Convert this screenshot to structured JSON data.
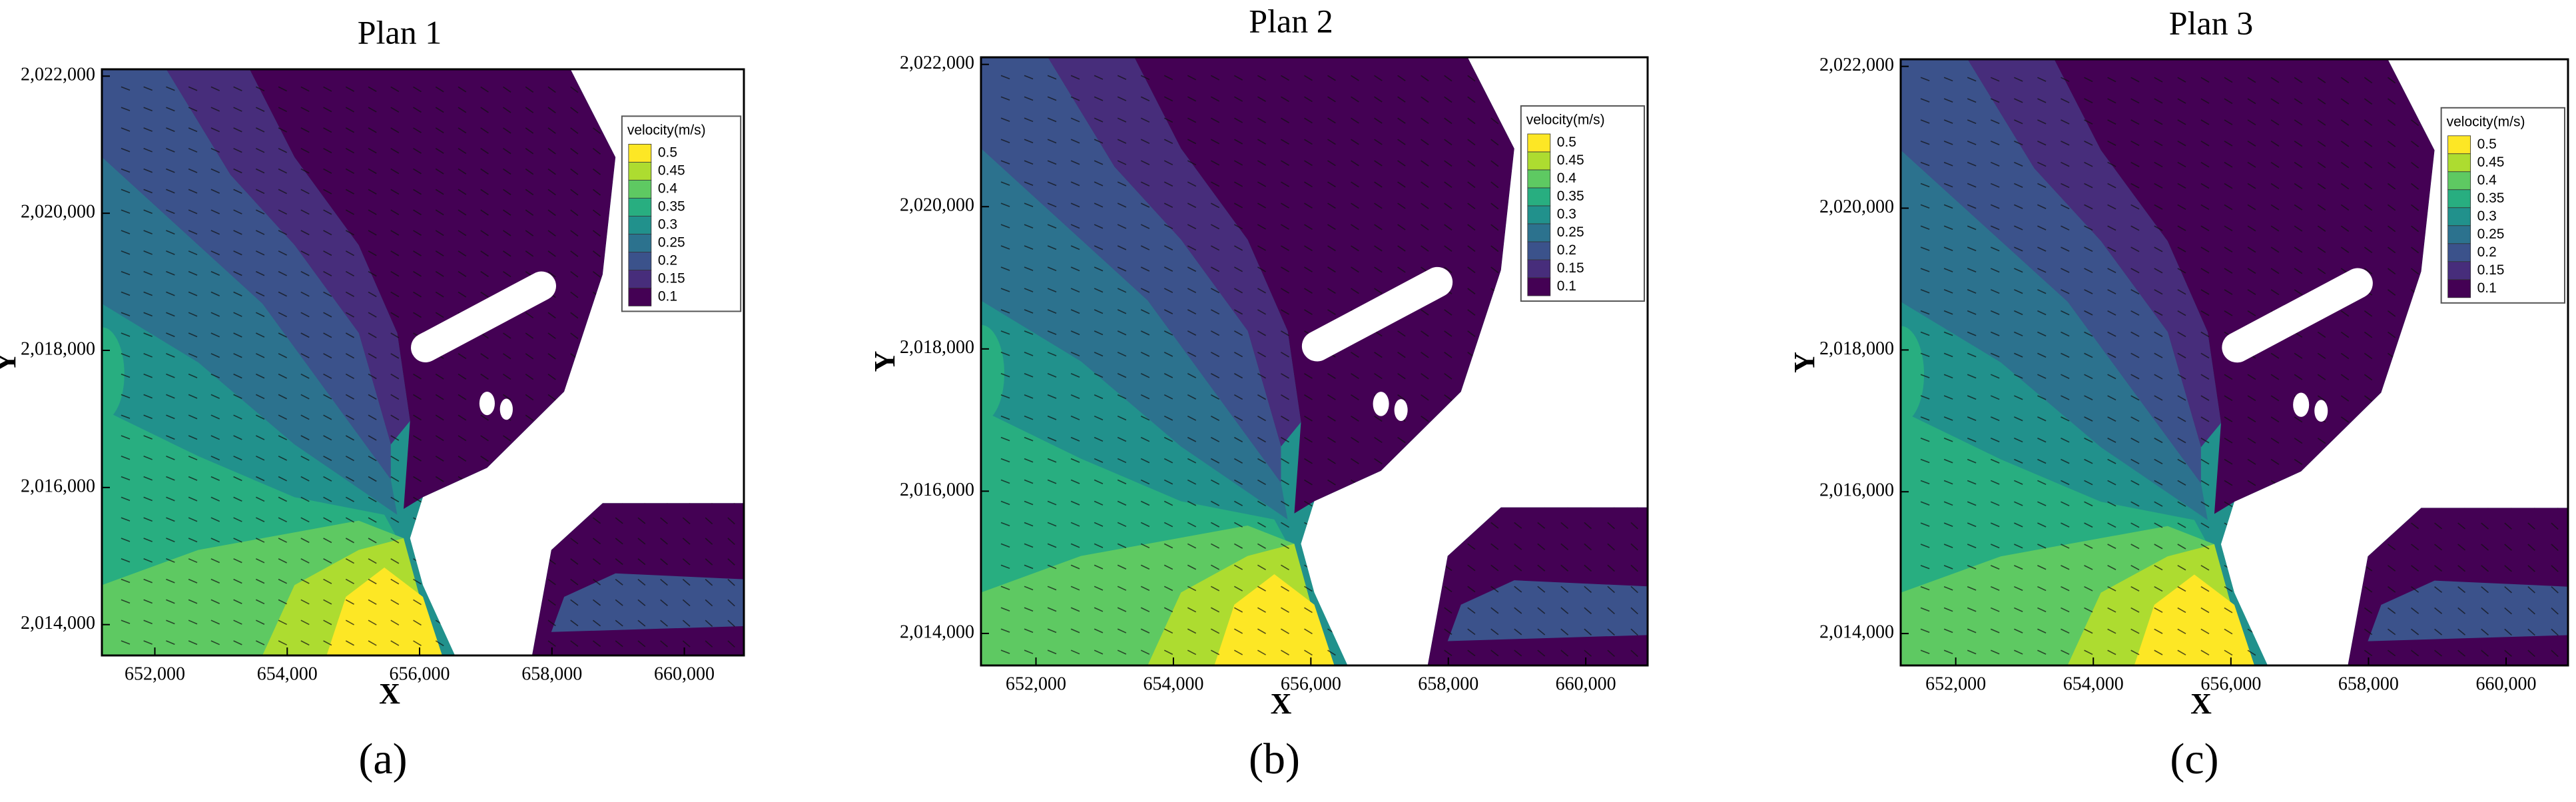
{
  "chart_data": [
    {
      "type": "contour",
      "title": "Plan 1",
      "x_label": "X",
      "y_label": "Y",
      "panel_label": "(a)",
      "xlim": [
        651200,
        660900
      ],
      "ylim": [
        2013550,
        2022100
      ],
      "xticks": [
        {
          "value": 652000,
          "label": "652,000"
        },
        {
          "value": 654000,
          "label": "654,000"
        },
        {
          "value": 656000,
          "label": "656,000"
        },
        {
          "value": 658000,
          "label": "658,000"
        },
        {
          "value": 660000,
          "label": "660,000"
        }
      ],
      "yticks": [
        {
          "value": 2014000,
          "label": "2,014,000"
        },
        {
          "value": 2016000,
          "label": "2,016,000"
        },
        {
          "value": 2018000,
          "label": "2,018,000"
        },
        {
          "value": 2020000,
          "label": "2,020,000"
        },
        {
          "value": 2022000,
          "label": "2,022,000"
        }
      ],
      "colorbar": {
        "title": "velocity(m/s)",
        "levels": [
          0.5,
          0.45,
          0.4,
          0.35,
          0.3,
          0.25,
          0.2,
          0.15,
          0.1
        ],
        "colors": [
          "#fde725",
          "#addc30",
          "#5ec962",
          "#28ae80",
          "#21918c",
          "#2c728e",
          "#3b528b",
          "#472d7b",
          "#440154"
        ]
      }
    },
    {
      "type": "contour",
      "title": "Plan 2",
      "x_label": "X",
      "y_label": "Y",
      "panel_label": "(b)",
      "xlim": [
        651200,
        660900
      ],
      "ylim": [
        2013550,
        2022100
      ],
      "xticks": [
        {
          "value": 652000,
          "label": "652,000"
        },
        {
          "value": 654000,
          "label": "654,000"
        },
        {
          "value": 656000,
          "label": "656,000"
        },
        {
          "value": 658000,
          "label": "658,000"
        },
        {
          "value": 660000,
          "label": "660,000"
        }
      ],
      "yticks": [
        {
          "value": 2014000,
          "label": "2,014,000"
        },
        {
          "value": 2016000,
          "label": "2,016,000"
        },
        {
          "value": 2018000,
          "label": "2,018,000"
        },
        {
          "value": 2020000,
          "label": "2,020,000"
        },
        {
          "value": 2022000,
          "label": "2,022,000"
        }
      ],
      "colorbar": {
        "title": "velocity(m/s)",
        "levels": [
          0.5,
          0.45,
          0.4,
          0.35,
          0.3,
          0.25,
          0.2,
          0.15,
          0.1
        ],
        "colors": [
          "#fde725",
          "#addc30",
          "#5ec962",
          "#28ae80",
          "#21918c",
          "#2c728e",
          "#3b528b",
          "#472d7b",
          "#440154"
        ]
      }
    },
    {
      "type": "contour",
      "title": "Plan 3",
      "x_label": "X",
      "y_label": "Y",
      "panel_label": "(c)",
      "xlim": [
        651200,
        660900
      ],
      "ylim": [
        2013550,
        2022100
      ],
      "xticks": [
        {
          "value": 652000,
          "label": "652,000"
        },
        {
          "value": 654000,
          "label": "654,000"
        },
        {
          "value": 656000,
          "label": "656,000"
        },
        {
          "value": 658000,
          "label": "658,000"
        },
        {
          "value": 660000,
          "label": "660,000"
        }
      ],
      "yticks": [
        {
          "value": 2014000,
          "label": "2,014,000"
        },
        {
          "value": 2016000,
          "label": "2,016,000"
        },
        {
          "value": 2018000,
          "label": "2,018,000"
        },
        {
          "value": 2020000,
          "label": "2,020,000"
        },
        {
          "value": 2022000,
          "label": "2,022,000"
        }
      ],
      "colorbar": {
        "title": "velocity(m/s)",
        "levels": [
          0.5,
          0.45,
          0.4,
          0.35,
          0.3,
          0.25,
          0.2,
          0.15,
          0.1
        ],
        "colors": [
          "#fde725",
          "#addc30",
          "#5ec962",
          "#28ae80",
          "#21918c",
          "#2c728e",
          "#3b528b",
          "#472d7b",
          "#440154"
        ]
      }
    }
  ]
}
